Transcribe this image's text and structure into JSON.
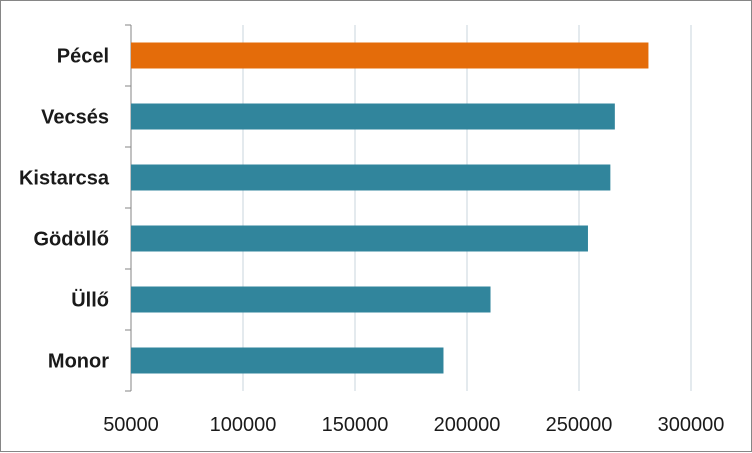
{
  "chart_data": {
    "type": "bar",
    "orientation": "horizontal",
    "title": "",
    "xlabel": "",
    "ylabel": "",
    "categories": [
      "Pécel",
      "Vecsés",
      "Kistarcsa",
      "Gödöllő",
      "Üllő",
      "Monor"
    ],
    "values": [
      281000,
      266000,
      264000,
      254000,
      210500,
      189500
    ],
    "highlight_index": 0,
    "highlight_color": "#E46C0A",
    "bar_color": "#31859C",
    "xlim": [
      50000,
      300000
    ],
    "xticks": [
      "50000",
      "100000",
      "150000",
      "200000",
      "250000",
      "300000"
    ],
    "grid": "vertical",
    "legend": "none"
  }
}
